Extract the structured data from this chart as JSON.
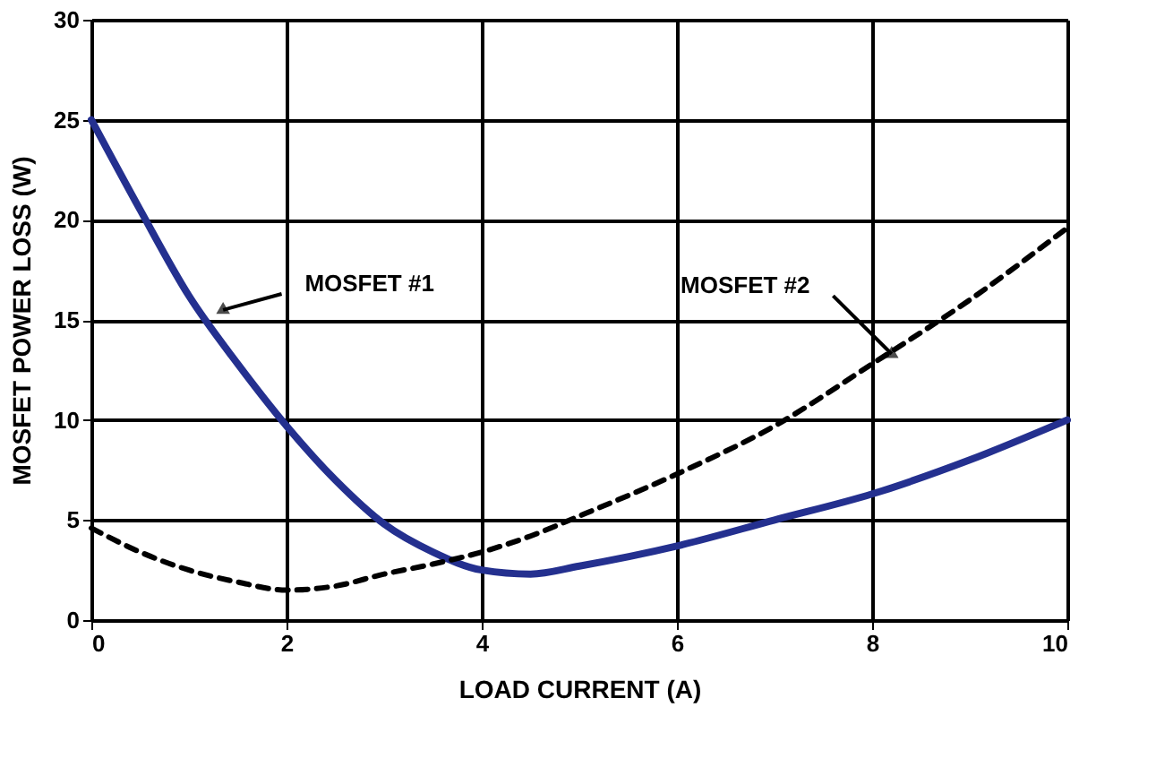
{
  "chart_data": {
    "type": "line",
    "xlabel": "LOAD CURRENT (A)",
    "ylabel": "MOSFET POWER LOSS (W)",
    "x": [
      0,
      0.5,
      1,
      1.5,
      2,
      2.5,
      3,
      3.5,
      4,
      4.5,
      5,
      6,
      7,
      8,
      9,
      10
    ],
    "series": [
      {
        "color": "#24308f",
        "line_style": "solid",
        "values": [
          25,
          20.5,
          16.2,
          12.8,
          9.7,
          7.0,
          4.8,
          3.4,
          2.5,
          2.3,
          2.7,
          3.7,
          5.0,
          6.3,
          8.0,
          10.0
        ]
      },
      {
        "color": "#000000",
        "line_style": "dashed",
        "values": [
          4.6,
          3.4,
          2.5,
          1.9,
          1.5,
          1.7,
          2.3,
          2.8,
          3.4,
          4.2,
          5.2,
          7.3,
          9.7,
          12.8,
          16.0,
          19.6
        ]
      }
    ],
    "annotations": [
      {
        "text": "MOSFET #1",
        "x": 1.35,
        "y": 15.5
      },
      {
        "text": "MOSFET #2",
        "x": 8.2,
        "y": 13.3
      }
    ],
    "xlim": [
      0,
      10
    ],
    "xticks": [
      0,
      2,
      4,
      6,
      8,
      10
    ],
    "ylim": [
      0,
      30
    ],
    "yticks": [
      0,
      5,
      10,
      15,
      20,
      25,
      30
    ],
    "grid": true
  }
}
